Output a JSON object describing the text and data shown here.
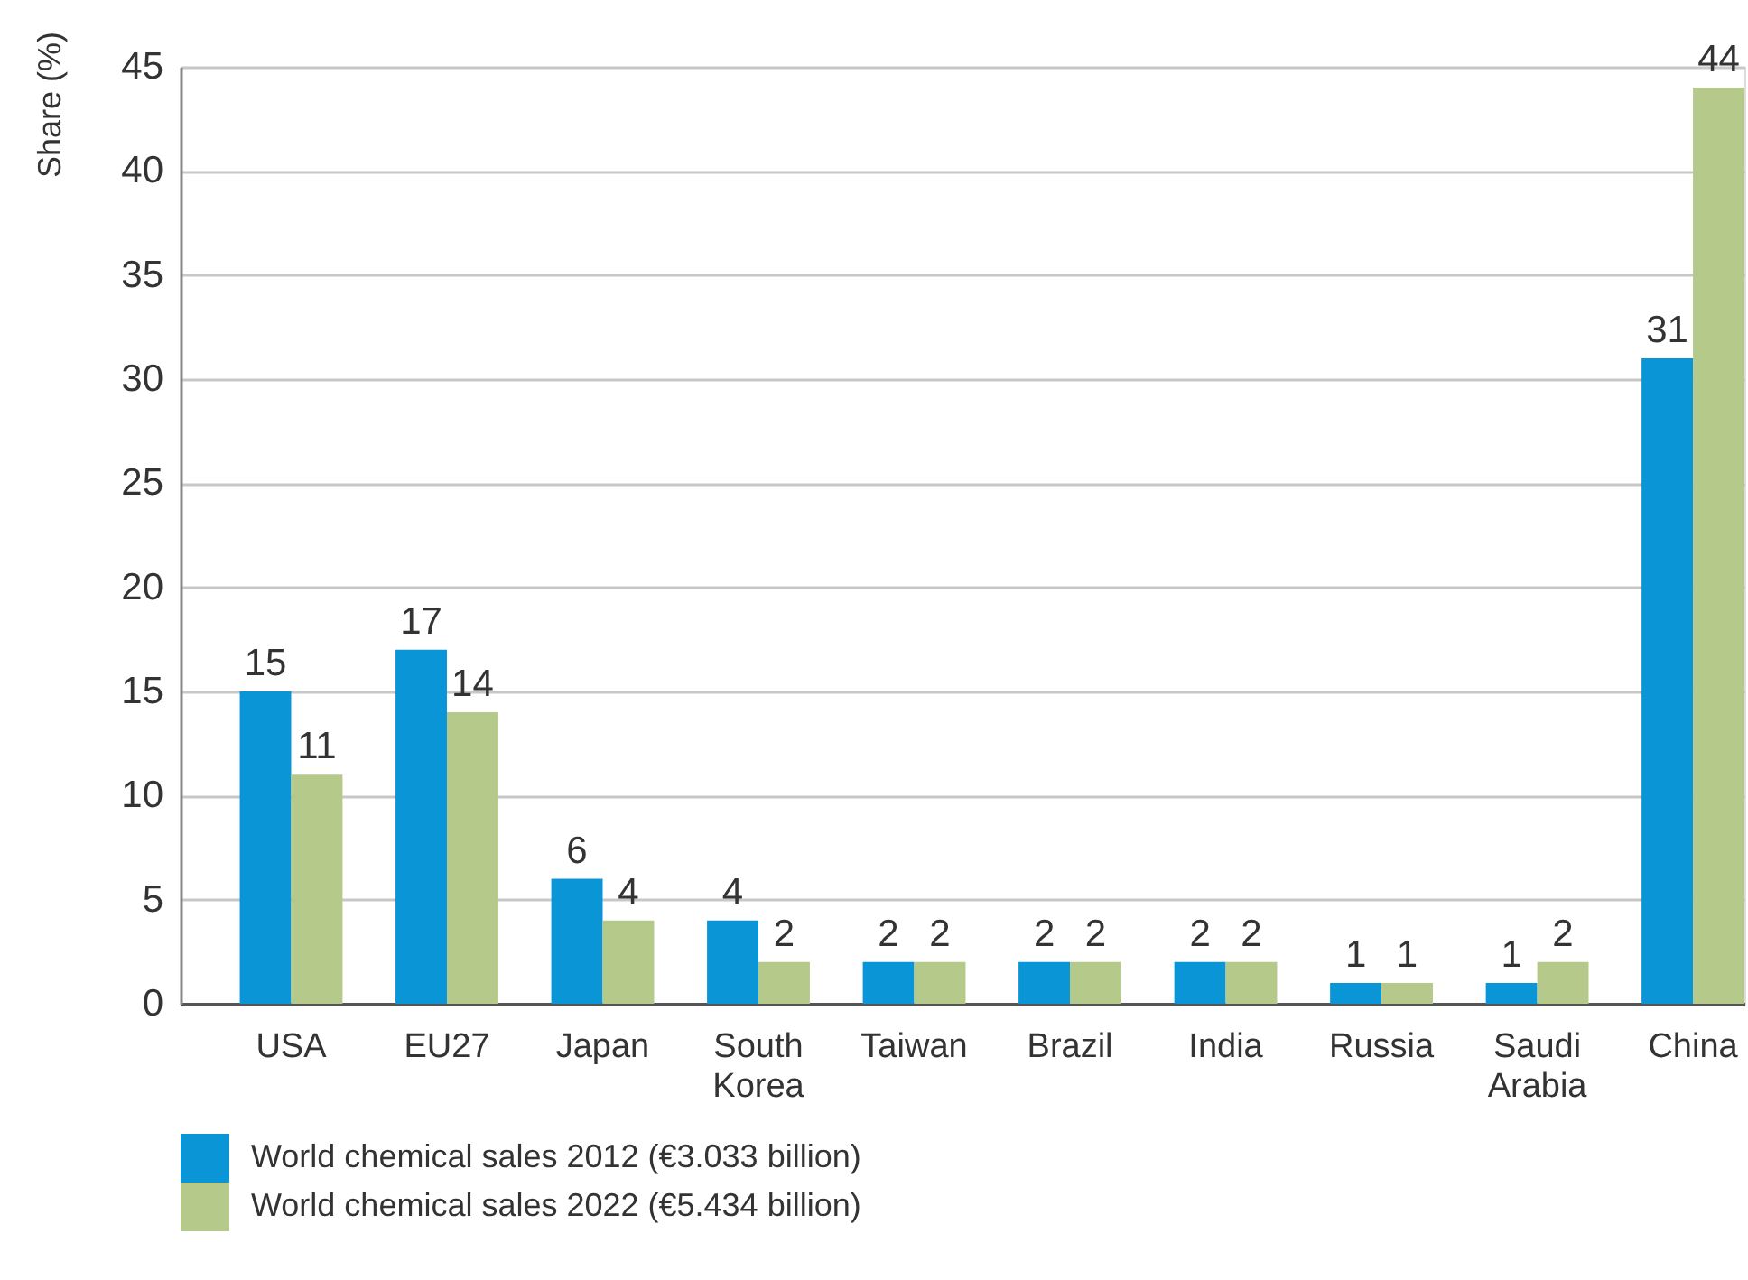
{
  "chart_data": {
    "type": "bar",
    "ylabel": "Share (%)",
    "categories": [
      "USA",
      "EU27",
      "Japan",
      "South Korea",
      "Taiwan",
      "Brazil",
      "India",
      "Russia",
      "Saudi Arabia",
      "China"
    ],
    "series": [
      {
        "name": "World chemical sales 2012 (€3.033 billion)",
        "color": "#0a96d6",
        "values": [
          15,
          17,
          6,
          4,
          2,
          2,
          2,
          1,
          1,
          31
        ]
      },
      {
        "name": "World chemical sales 2022 (€5.434 billion)",
        "color": "#b4c98a",
        "values": [
          11,
          14,
          4,
          2,
          2,
          2,
          2,
          1,
          2,
          44
        ]
      }
    ],
    "ylim": [
      0,
      45
    ],
    "yticks": [
      0,
      5,
      10,
      15,
      20,
      25,
      30,
      35,
      40,
      45
    ],
    "grid": "y",
    "legend": "bottom",
    "data_labels": true
  }
}
